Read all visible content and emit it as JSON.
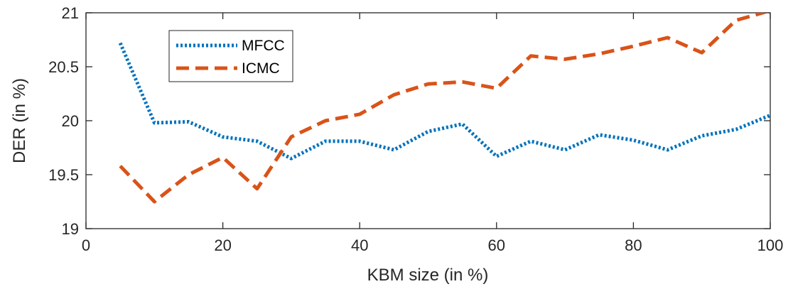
{
  "chart_data": {
    "type": "line",
    "xlabel": "KBM size (in %)",
    "ylabel": "DER (in %)",
    "xlim": [
      0,
      100
    ],
    "ylim": [
      19,
      21
    ],
    "xticks": [
      0,
      20,
      40,
      60,
      80,
      100
    ],
    "xtick_labels": [
      "0",
      "20",
      "40",
      "60",
      "80",
      "100"
    ],
    "yticks": [
      19,
      19.5,
      20,
      20.5,
      21
    ],
    "ytick_labels": [
      "19",
      "19.5",
      "20",
      "20.5",
      "21"
    ],
    "grid": false,
    "legend_position": "upper-left",
    "x": [
      5,
      10,
      15,
      20,
      25,
      30,
      35,
      40,
      45,
      50,
      55,
      60,
      65,
      70,
      75,
      80,
      85,
      90,
      95,
      100
    ],
    "series": [
      {
        "name": "MFCC",
        "color": "#0072BD",
        "style": "dotted",
        "values": [
          20.72,
          19.98,
          19.99,
          19.85,
          19.81,
          19.65,
          19.81,
          19.81,
          19.73,
          19.9,
          19.97,
          19.67,
          19.81,
          19.73,
          19.87,
          19.82,
          19.73,
          19.86,
          19.92,
          20.05
        ]
      },
      {
        "name": "ICMC",
        "color": "#D95319",
        "style": "dashed",
        "values": [
          19.58,
          19.25,
          19.5,
          19.66,
          19.37,
          19.85,
          20.0,
          20.06,
          20.24,
          20.34,
          20.36,
          20.3,
          20.6,
          20.57,
          20.62,
          20.69,
          20.77,
          20.63,
          20.93,
          21.02
        ]
      }
    ]
  }
}
